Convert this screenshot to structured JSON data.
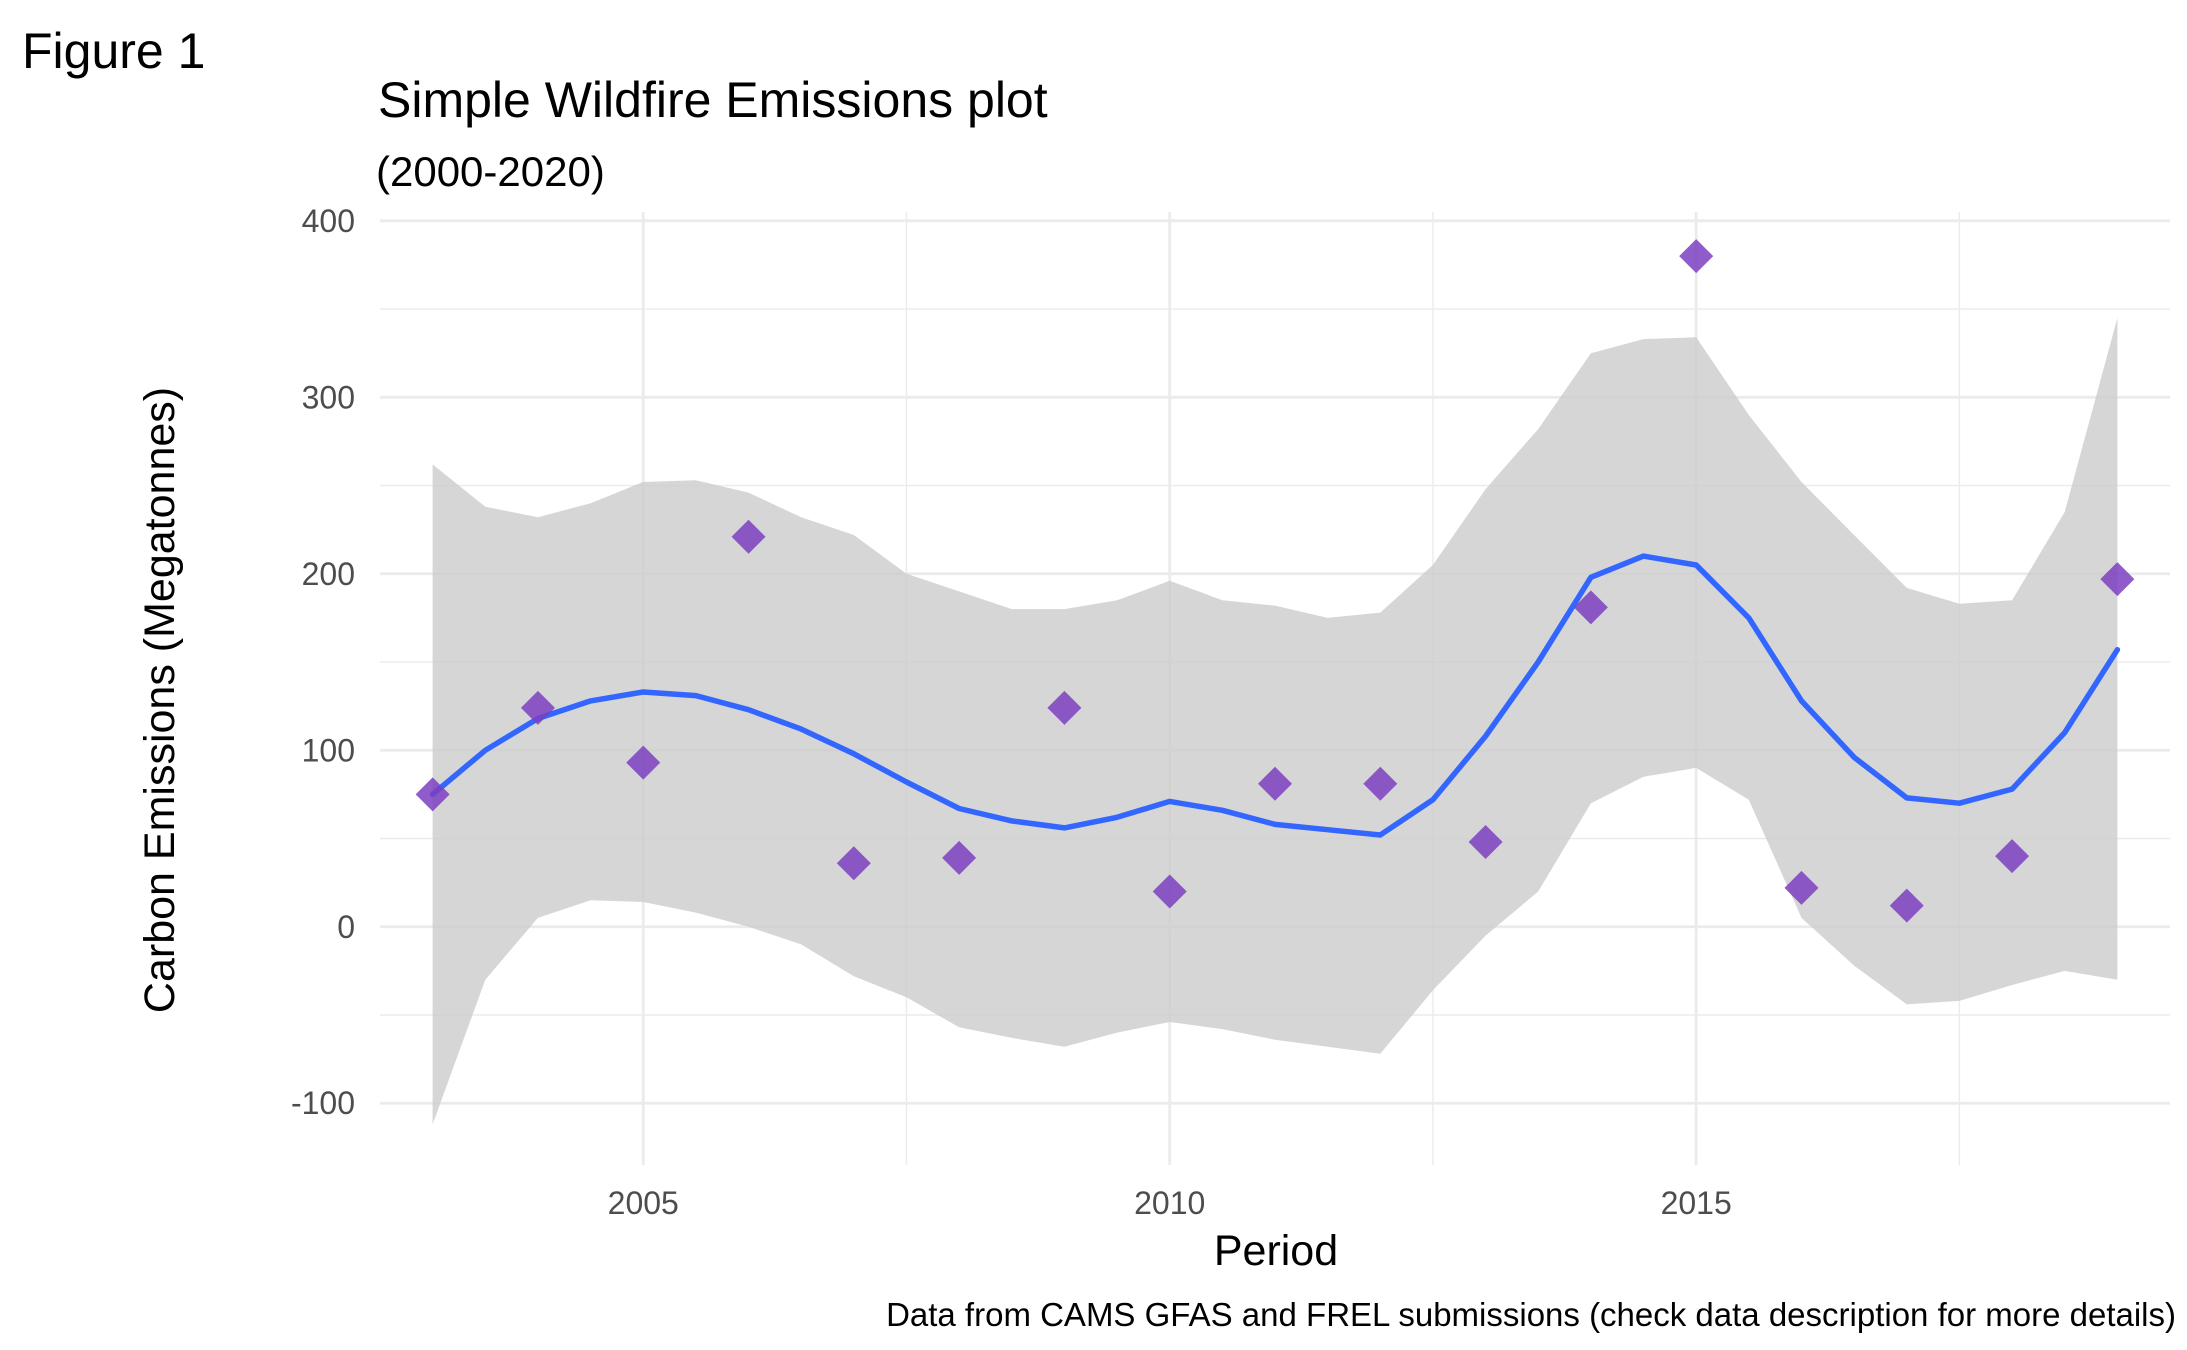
{
  "figure_label": "Figure 1",
  "chart_data": {
    "type": "scatter",
    "title": "Simple Wildfire Emissions plot",
    "subtitle": "(2000-2020)",
    "xlabel": "Period",
    "ylabel": "Carbon Emissions (Megatonnes)",
    "caption": "Data from CAMS GFAS and FREL submissions (check data description for more details)",
    "xlim": [
      2002.5,
      2019.5
    ],
    "ylim": [
      -135,
      405
    ],
    "x_ticks": [
      2005,
      2010,
      2015
    ],
    "x_tick_labels": [
      "2005",
      "2010",
      "2015"
    ],
    "y_ticks": [
      -100,
      0,
      100,
      200,
      300,
      400
    ],
    "y_tick_labels": [
      "-100",
      "0",
      "100",
      "200",
      "300",
      "400"
    ],
    "grid": true,
    "colors": {
      "point": "#7b3fbf",
      "smooth_line": "#3366ff",
      "confidence_band": "#cccccc",
      "grid": "#ebebeb"
    },
    "points": {
      "x": [
        2003,
        2004,
        2005,
        2006,
        2007,
        2008,
        2009,
        2010,
        2011,
        2012,
        2013,
        2014,
        2015,
        2016,
        2017,
        2018,
        2019
      ],
      "y": [
        75,
        124,
        93,
        221,
        36,
        39,
        124,
        20,
        81,
        81,
        48,
        181,
        380,
        22,
        12,
        40,
        197
      ]
    },
    "smooth": {
      "x": [
        2003,
        2003.5,
        2004,
        2004.5,
        2005,
        2005.5,
        2006,
        2006.5,
        2007,
        2007.5,
        2008,
        2008.5,
        2009,
        2009.5,
        2010,
        2010.5,
        2011,
        2011.5,
        2012,
        2012.5,
        2013,
        2013.5,
        2014,
        2014.5,
        2015,
        2015.5,
        2016,
        2016.5,
        2017,
        2017.5,
        2018,
        2018.5,
        2019
      ],
      "y": [
        75,
        100,
        118,
        128,
        133,
        131,
        123,
        112,
        98,
        82,
        67,
        60,
        56,
        62,
        71,
        66,
        58,
        55,
        52,
        72,
        108,
        150,
        198,
        210,
        205,
        175,
        128,
        96,
        73,
        70,
        78,
        110,
        157
      ],
      "upper": [
        262,
        238,
        232,
        240,
        252,
        253,
        246,
        232,
        222,
        200,
        190,
        180,
        180,
        185,
        196,
        185,
        182,
        175,
        178,
        205,
        248,
        282,
        325,
        333,
        334,
        290,
        252,
        222,
        192,
        183,
        185,
        235,
        345
      ],
      "lower": [
        -112,
        -30,
        5,
        15,
        14,
        8,
        0,
        -10,
        -28,
        -40,
        -57,
        -63,
        -68,
        -60,
        -54,
        -58,
        -64,
        -68,
        -72,
        -36,
        -5,
        20,
        70,
        85,
        90,
        72,
        5,
        -22,
        -44,
        -42,
        -33,
        -25,
        -30
      ]
    }
  }
}
